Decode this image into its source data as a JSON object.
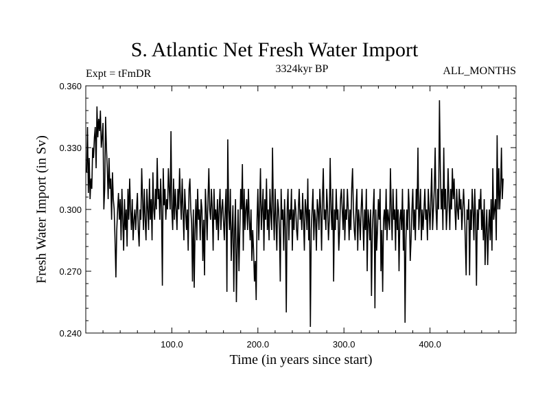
{
  "chart_data": {
    "type": "line",
    "title": "S. Atlantic Net Fresh Water Import",
    "subtitle": "3324kyr BP",
    "left_label": "Expt = tFmDR",
    "right_label": "ALL_MONTHS",
    "xlabel": "Time (in years since start)",
    "ylabel": "Fresh Water Import (in Sv)",
    "xlim": [
      0,
      500
    ],
    "ylim": [
      0.24,
      0.36
    ],
    "x_ticks": [
      100,
      200,
      300,
      400
    ],
    "x_tick_labels": [
      "100.0",
      "200.0",
      "300.0",
      "400.0"
    ],
    "y_ticks": [
      0.24,
      0.27,
      0.3,
      0.33,
      0.36
    ],
    "y_tick_labels": [
      "0.240",
      "0.270",
      "0.300",
      "0.330",
      "0.360"
    ],
    "grid": false,
    "series": [
      {
        "name": "Fresh Water Import",
        "x_start": 1,
        "x_step": 1,
        "values": [
          0.318,
          0.34,
          0.308,
          0.325,
          0.305,
          0.315,
          0.31,
          0.33,
          0.325,
          0.335,
          0.34,
          0.32,
          0.35,
          0.335,
          0.344,
          0.338,
          0.348,
          0.33,
          0.335,
          0.342,
          0.3,
          0.31,
          0.345,
          0.33,
          0.32,
          0.305,
          0.325,
          0.31,
          0.315,
          0.295,
          0.318,
          0.305,
          0.3,
          0.285,
          0.267,
          0.29,
          0.3,
          0.308,
          0.295,
          0.305,
          0.285,
          0.31,
          0.295,
          0.28,
          0.305,
          0.29,
          0.3,
          0.282,
          0.31,
          0.295,
          0.315,
          0.3,
          0.29,
          0.305,
          0.285,
          0.295,
          0.3,
          0.29,
          0.3,
          0.308,
          0.29,
          0.282,
          0.3,
          0.295,
          0.32,
          0.305,
          0.29,
          0.31,
          0.295,
          0.285,
          0.31,
          0.3,
          0.29,
          0.315,
          0.295,
          0.305,
          0.285,
          0.318,
          0.3,
          0.295,
          0.31,
          0.3,
          0.325,
          0.305,
          0.31,
          0.295,
          0.315,
          0.3,
          0.263,
          0.32,
          0.302,
          0.31,
          0.295,
          0.305,
          0.3,
          0.32,
          0.31,
          0.3,
          0.338,
          0.3,
          0.29,
          0.315,
          0.295,
          0.31,
          0.3,
          0.29,
          0.31,
          0.3,
          0.32,
          0.305,
          0.295,
          0.315,
          0.3,
          0.285,
          0.31,
          0.3,
          0.29,
          0.3,
          0.28,
          0.31,
          0.315,
          0.3,
          0.293,
          0.265,
          0.3,
          0.262,
          0.29,
          0.305,
          0.285,
          0.31,
          0.295,
          0.3,
          0.285,
          0.305,
          0.3,
          0.275,
          0.295,
          0.268,
          0.31,
          0.3,
          0.285,
          0.305,
          0.32,
          0.3,
          0.295,
          0.31,
          0.3,
          0.28,
          0.31,
          0.295,
          0.3,
          0.29,
          0.305,
          0.285,
          0.3,
          0.31,
          0.29,
          0.3,
          0.305,
          0.295,
          0.285,
          0.3,
          0.31,
          0.26,
          0.334,
          0.3,
          0.29,
          0.31,
          0.275,
          0.29,
          0.302,
          0.26,
          0.29,
          0.305,
          0.255,
          0.28,
          0.3,
          0.27,
          0.29,
          0.31,
          0.3,
          0.322,
          0.28,
          0.31,
          0.29,
          0.3,
          0.305,
          0.29,
          0.31,
          0.295,
          0.285,
          0.3,
          0.275,
          0.29,
          0.28,
          0.265,
          0.275,
          0.256,
          0.295,
          0.31,
          0.285,
          0.3,
          0.32,
          0.29,
          0.3,
          0.31,
          0.28,
          0.305,
          0.295,
          0.315,
          0.29,
          0.3,
          0.285,
          0.31,
          0.298,
          0.29,
          0.33,
          0.3,
          0.285,
          0.31,
          0.295,
          0.28,
          0.305,
          0.3,
          0.29,
          0.265,
          0.31,
          0.295,
          0.3,
          0.28,
          0.305,
          0.29,
          0.25,
          0.3,
          0.31,
          0.285,
          0.3,
          0.295,
          0.31,
          0.28,
          0.3,
          0.29,
          0.305,
          0.3,
          0.29,
          0.285,
          0.3,
          0.31,
          0.295,
          0.3,
          0.29,
          0.308,
          0.295,
          0.28,
          0.305,
          0.3,
          0.29,
          0.315,
          0.285,
          0.3,
          0.243,
          0.29,
          0.3,
          0.31,
          0.285,
          0.3,
          0.295,
          0.28,
          0.305,
          0.3,
          0.29,
          0.31,
          0.3,
          0.28,
          0.305,
          0.32,
          0.295,
          0.3,
          0.29,
          0.31,
          0.3,
          0.285,
          0.295,
          0.325,
          0.3,
          0.29,
          0.31,
          0.265,
          0.3,
          0.29,
          0.31,
          0.295,
          0.3,
          0.28,
          0.29,
          0.305,
          0.31,
          0.3,
          0.29,
          0.31,
          0.285,
          0.3,
          0.295,
          0.31,
          0.3,
          0.285,
          0.3,
          0.29,
          0.31,
          0.32,
          0.3,
          0.29,
          0.285,
          0.3,
          0.31,
          0.28,
          0.3,
          0.295,
          0.285,
          0.3,
          0.31,
          0.295,
          0.28,
          0.3,
          0.29,
          0.31,
          0.27,
          0.3,
          0.295,
          0.285,
          0.3,
          0.258,
          0.29,
          0.3,
          0.31,
          0.252,
          0.3,
          0.28,
          0.29,
          0.305,
          0.295,
          0.31,
          0.27,
          0.29,
          0.26,
          0.295,
          0.3,
          0.29,
          0.31,
          0.285,
          0.3,
          0.295,
          0.29,
          0.32,
          0.3,
          0.285,
          0.31,
          0.295,
          0.3,
          0.28,
          0.31,
          0.29,
          0.3,
          0.27,
          0.295,
          0.3,
          0.29,
          0.31,
          0.28,
          0.3,
          0.245,
          0.285,
          0.3,
          0.29,
          0.31,
          0.3,
          0.275,
          0.285,
          0.3,
          0.31,
          0.29,
          0.3,
          0.285,
          0.31,
          0.3,
          0.33,
          0.29,
          0.3,
          0.31,
          0.285,
          0.3,
          0.29,
          0.3,
          0.31,
          0.295,
          0.3,
          0.285,
          0.31,
          0.3,
          0.29,
          0.305,
          0.32,
          0.29,
          0.3,
          0.31,
          0.33,
          0.3,
          0.29,
          0.31,
          0.3,
          0.353,
          0.32,
          0.3,
          0.31,
          0.29,
          0.33,
          0.3,
          0.31,
          0.29,
          0.3,
          0.32,
          0.305,
          0.29,
          0.31,
          0.3,
          0.32,
          0.305,
          0.315,
          0.3,
          0.29,
          0.31,
          0.3,
          0.295,
          0.31,
          0.3,
          0.305,
          0.29,
          0.3,
          0.31,
          0.3,
          0.285,
          0.268,
          0.3,
          0.295,
          0.305,
          0.268,
          0.3,
          0.29,
          0.31,
          0.3,
          0.285,
          0.31,
          0.295,
          0.263,
          0.3,
          0.29,
          0.305,
          0.3,
          0.31,
          0.29,
          0.3,
          0.285,
          0.305,
          0.273,
          0.29,
          0.3,
          0.273,
          0.29,
          0.3,
          0.285,
          0.305,
          0.28,
          0.32,
          0.295,
          0.3,
          0.305,
          0.285,
          0.336,
          0.3,
          0.32,
          0.3,
          0.31,
          0.33,
          0.305,
          0.315
        ]
      }
    ]
  }
}
